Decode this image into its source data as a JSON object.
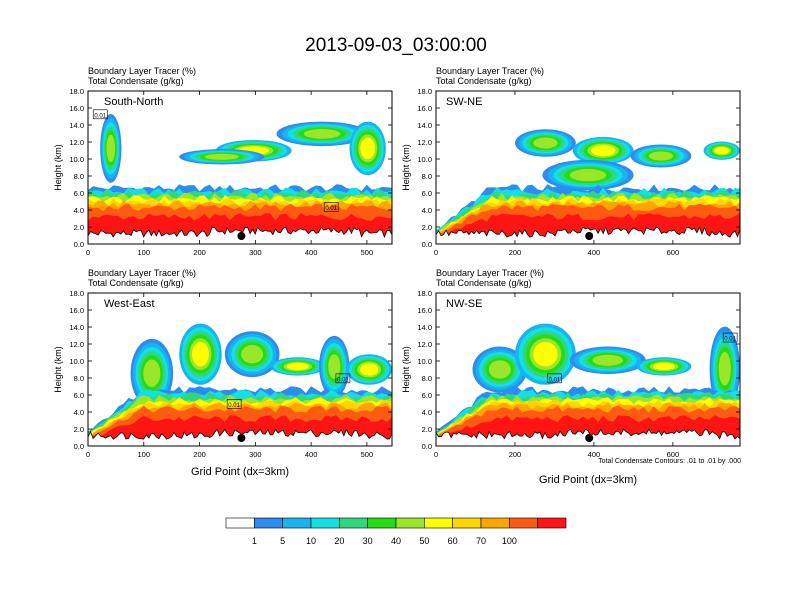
{
  "figure": {
    "title": "2013-09-03_03:00:00",
    "xlabel": "Grid Point (dx=3km)",
    "contour_note": "Total Condensate Contours: .01 to .01 by .000"
  },
  "chart_data": [
    {
      "type": "heatmap",
      "panel": "South-North",
      "top_label_1": "Boundary Layer Tracer    (%)",
      "top_label_2": "Total Condensate    (g/kg)",
      "ylabel": "Height (km)",
      "xlim": [
        0,
        545
      ],
      "ylim": [
        0,
        18
      ],
      "xticks": [
        0,
        100,
        200,
        300,
        400,
        500
      ],
      "yticks": [
        "0.0",
        "2.0",
        "4.0",
        "6.0",
        "8.0",
        "10.0",
        "12.0",
        "14.0",
        "16.0",
        "18.0"
      ],
      "marker_x": 275,
      "contour_labels": [
        {
          "text": "0.01",
          "x": 22,
          "y": 15.2
        },
        {
          "text": "0.01",
          "x": 436,
          "y": 4.3
        }
      ]
    },
    {
      "type": "heatmap",
      "panel": "SW-NE",
      "top_label_1": "Boundary Layer Tracer    (%)",
      "top_label_2": "Total Condensate    (g/kg)",
      "ylabel": "Height (km)",
      "xlim": [
        0,
        770
      ],
      "ylim": [
        0,
        18
      ],
      "xticks": [
        0,
        200,
        400,
        600
      ],
      "yticks": [
        "0.0",
        "2.0",
        "4.0",
        "6.0",
        "8.0",
        "10.0",
        "12.0",
        "14.0",
        "16.0",
        "18.0"
      ],
      "marker_x": 388,
      "contour_labels": []
    },
    {
      "type": "heatmap",
      "panel": "West-East",
      "top_label_1": "Boundary Layer Tracer    (%)",
      "top_label_2": "Total Condensate    (g/kg)",
      "ylabel": "Height (km)",
      "xlim": [
        0,
        545
      ],
      "ylim": [
        0,
        18
      ],
      "xticks": [
        0,
        100,
        200,
        300,
        400,
        500
      ],
      "yticks": [
        "0.0",
        "2.0",
        "4.0",
        "6.0",
        "8.0",
        "10.0",
        "12.0",
        "14.0",
        "16.0",
        "18.0"
      ],
      "marker_x": 275,
      "contour_labels": [
        {
          "text": "0.01",
          "x": 262,
          "y": 4.9
        },
        {
          "text": "0.01",
          "x": 457,
          "y": 7.9
        }
      ]
    },
    {
      "type": "heatmap",
      "panel": "NW-SE",
      "top_label_1": "Boundary Layer Tracer    (%)",
      "top_label_2": "Total Condensate    (g/kg)",
      "ylabel": "Height (km)",
      "xlim": [
        0,
        770
      ],
      "ylim": [
        0,
        18
      ],
      "xticks": [
        0,
        200,
        400,
        600
      ],
      "yticks": [
        "0.0",
        "2.0",
        "4.0",
        "6.0",
        "8.0",
        "10.0",
        "12.0",
        "14.0",
        "16.0",
        "18.0"
      ],
      "marker_x": 388,
      "contour_labels": [
        {
          "text": "0.01",
          "x": 300,
          "y": 7.9
        },
        {
          "text": "0.01",
          "x": 745,
          "y": 12.7
        }
      ]
    }
  ],
  "colorbar": {
    "labels": [
      "1",
      "5",
      "10",
      "20",
      "30",
      "40",
      "50",
      "60",
      "70",
      "100"
    ],
    "colors": [
      "#ffffff",
      "#2d8cf0",
      "#19b3f2",
      "#11e1e6",
      "#2fd77e",
      "#22dd12",
      "#9be62b",
      "#ffff00",
      "#ffd700",
      "#ffa500",
      "#ff5a14",
      "#ff1414"
    ]
  }
}
